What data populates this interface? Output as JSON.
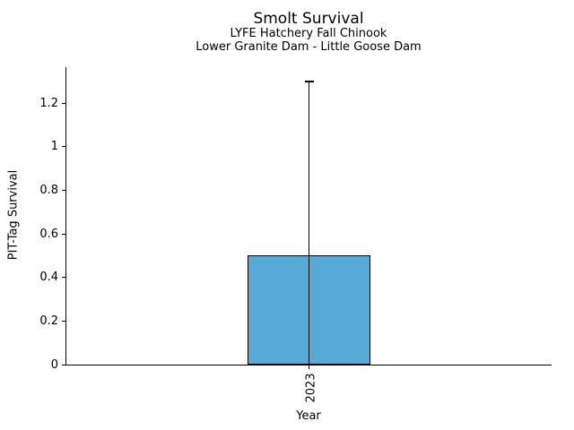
{
  "chart_data": {
    "type": "bar",
    "title": "Smolt Survival",
    "subtitle_line1": "LYFE Hatchery Fall Chinook",
    "subtitle_line2": "Lower Granite Dam - Little Goose Dam",
    "xlabel": "Year",
    "ylabel": "PIT-Tag Survival",
    "categories": [
      "2023"
    ],
    "values": [
      0.5
    ],
    "error_bar_upper": [
      1.3
    ],
    "error_bar_lower_visible": [
      0
    ],
    "yticks": [
      0,
      0.2,
      0.4,
      0.6,
      0.8,
      1,
      1.2
    ],
    "ytick_labels": [
      "0",
      "0.2",
      "0.4",
      "0.6",
      "0.8",
      "1",
      "1.2"
    ],
    "ylim": [
      0,
      1.365
    ],
    "grid": false,
    "legend_position": "none",
    "bar_color": "#57a9d6",
    "bar_edge_color": "#000000",
    "error_bar_color": "#000000",
    "axis_color": "#000000",
    "text_color": "#000000",
    "background_color": "#ffffff"
  }
}
